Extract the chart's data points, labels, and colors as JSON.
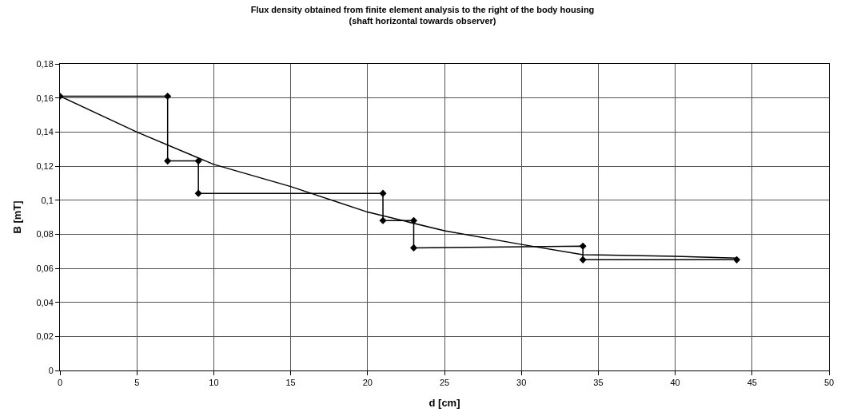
{
  "chart_data": {
    "type": "line",
    "title": "Flux density obtained from finite element analysis to the right of the body housing\n(shaft horizontal towards observer)",
    "xlabel": "d [cm]",
    "ylabel": "B [mT]",
    "series": [
      {
        "color": "#000000",
        "marker": "diamond",
        "x": [
          0,
          7,
          7,
          9,
          9,
          21,
          21,
          23,
          23,
          34,
          34,
          44
        ],
        "values": [
          0.161,
          0.161,
          0.123,
          0.123,
          0.104,
          0.104,
          0.088,
          0.088,
          0.072,
          0.073,
          0.065,
          0.065
        ]
      },
      {
        "color": "#000000",
        "marker": "none",
        "x": [
          0,
          5,
          10,
          15,
          20,
          25,
          30,
          34,
          40,
          44
        ],
        "values": [
          0.161,
          0.14,
          0.121,
          0.108,
          0.093,
          0.082,
          0.074,
          0.068,
          0.067,
          0.066
        ]
      }
    ],
    "xlim": [
      0,
      50
    ],
    "xticks": [
      0,
      5,
      10,
      15,
      20,
      25,
      30,
      35,
      40,
      45,
      50
    ],
    "ylim": [
      0,
      0.18
    ],
    "yticks": [
      {
        "value": 0,
        "label": "0"
      },
      {
        "value": 0.02,
        "label": "0,02"
      },
      {
        "value": 0.04,
        "label": "0,04"
      },
      {
        "value": 0.06,
        "label": "0,06"
      },
      {
        "value": 0.08,
        "label": "0,08"
      },
      {
        "value": 0.1,
        "label": "0,1"
      },
      {
        "value": 0.12,
        "label": "0,12"
      },
      {
        "value": 0.14,
        "label": "0,14"
      },
      {
        "value": 0.16,
        "label": "0,16"
      },
      {
        "value": 0.18,
        "label": "0,18"
      }
    ],
    "grid": true,
    "line_style": "solid"
  }
}
